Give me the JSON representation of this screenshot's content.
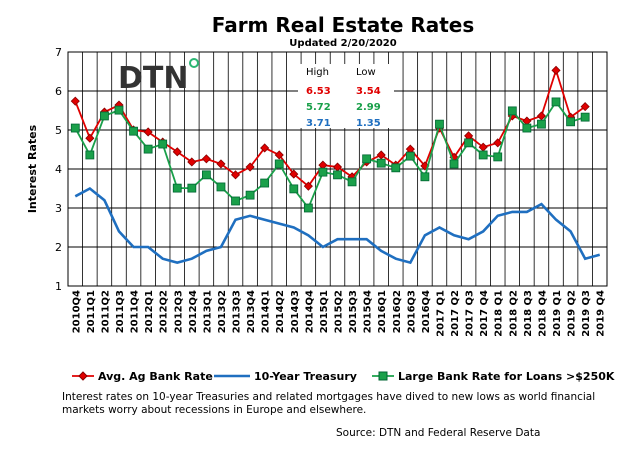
{
  "chart_data": {
    "type": "line",
    "title": "Farm Real Estate Rates",
    "subtitle": "Updated  2/20/2020",
    "logo": "DTN",
    "y_label": "Interest Rates",
    "categories": [
      "2010Q4",
      "2011Q1",
      "2011Q2",
      "2011Q3",
      "2011Q4",
      "2012Q1",
      "2012Q2",
      "2012Q3",
      "2012Q4",
      "2013Q1",
      "2013Q2",
      "2013Q3",
      "2013Q4",
      "2014Q1",
      "2014Q2",
      "2014Q3",
      "2014Q4",
      "2015Q1",
      "2015Q2",
      "2015Q3",
      "2015Q4",
      "2016Q1",
      "2016Q2",
      "2016Q3",
      "2016Q4",
      "2017 Q1",
      "2017 Q2",
      "2017 Q3",
      "2017 Q4",
      "2018 Q1",
      "2018 Q2",
      "2018 Q3",
      "2018 Q4",
      "2019 Q1",
      "2019 Q2",
      "2019 Q3",
      "2019 Q4"
    ],
    "series": [
      {
        "name": "Avg. Ag Bank Rate",
        "color": "#e00000",
        "marker": "diamond",
        "values": [
          5.74,
          4.79,
          5.46,
          5.64,
          5.0,
          4.95,
          4.69,
          4.44,
          4.18,
          4.26,
          4.13,
          3.85,
          4.05,
          4.54,
          4.36,
          3.87,
          3.56,
          4.1,
          4.05,
          3.8,
          4.18,
          4.36,
          4.1,
          4.51,
          4.08,
          5.05,
          4.3,
          4.85,
          4.56,
          4.67,
          5.36,
          5.23,
          5.36,
          6.53,
          5.33,
          5.6,
          null
        ]
      },
      {
        "name": "10-Year Treasury",
        "color": "#1f6fc0",
        "marker": null,
        "values": [
          3.3,
          3.5,
          3.2,
          2.4,
          2.0,
          2.0,
          1.7,
          1.6,
          1.7,
          1.9,
          2.0,
          2.7,
          2.8,
          2.7,
          2.6,
          2.5,
          2.3,
          2.0,
          2.2,
          2.2,
          2.2,
          1.9,
          1.7,
          1.6,
          2.3,
          2.5,
          2.3,
          2.2,
          2.4,
          2.8,
          2.9,
          2.9,
          3.1,
          2.7,
          2.4,
          1.7,
          1.8
        ]
      },
      {
        "name": "Large Bank Rate for Loans >$250K",
        "color": "#1aa04a",
        "marker": "square",
        "values": [
          5.05,
          4.36,
          5.36,
          5.51,
          4.97,
          4.51,
          4.64,
          3.51,
          3.51,
          3.85,
          3.54,
          3.18,
          3.33,
          3.64,
          4.13,
          3.49,
          3.0,
          3.92,
          3.85,
          3.67,
          4.26,
          4.15,
          4.03,
          4.33,
          3.8,
          5.15,
          4.13,
          4.67,
          4.36,
          4.31,
          5.49,
          5.05,
          5.15,
          5.72,
          5.21,
          5.33,
          null
        ]
      }
    ],
    "ylim": [
      1,
      7
    ],
    "yticks": [
      1,
      2,
      3,
      4,
      5,
      6,
      7
    ],
    "grid": true,
    "high_low": {
      "headers": [
        "High",
        "Low"
      ],
      "rows": [
        {
          "high": 6.53,
          "low": 3.54,
          "color": "#e00000"
        },
        {
          "high": 5.72,
          "low": 2.99,
          "color": "#1aa04a"
        },
        {
          "high": 3.71,
          "low": 1.35,
          "color": "#1f6fc0"
        }
      ]
    },
    "note": "Interest rates on 10-year Treasuries and related mortgages have dived to new lows as world financial markets worry about recessions in Europe and elsewhere.",
    "source": "Source: DTN  and Federal Reserve Data"
  }
}
